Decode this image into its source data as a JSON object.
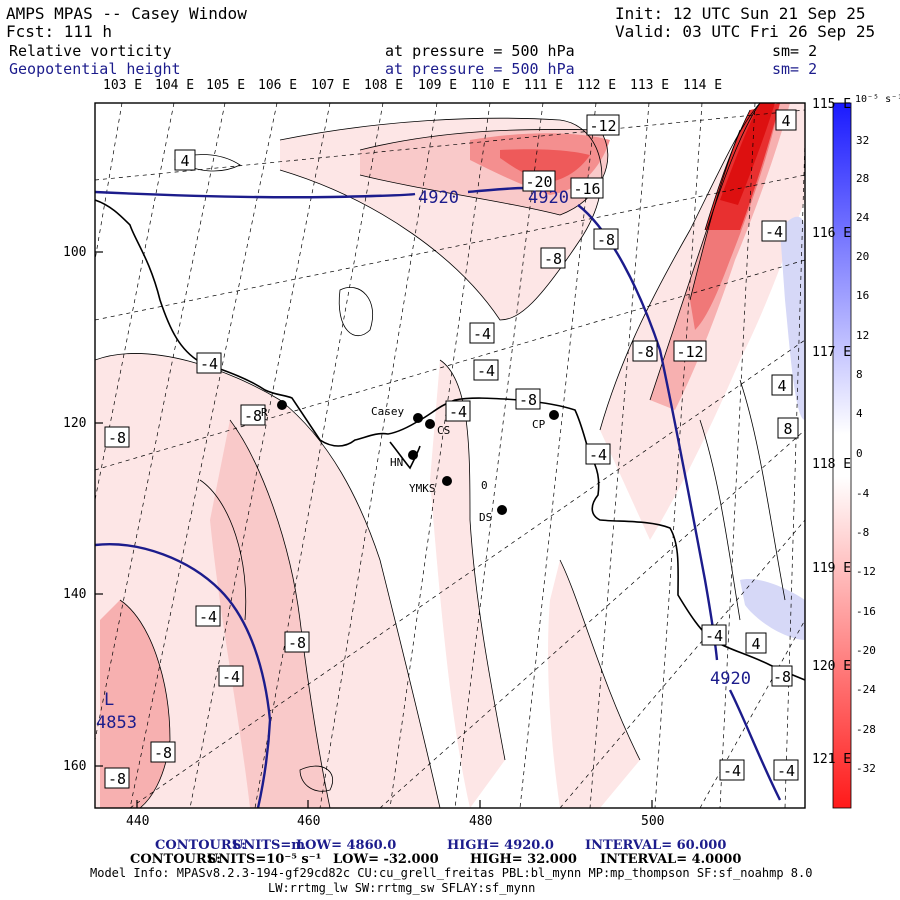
{
  "header": {
    "model": "AMPS MPAS -- Casey Window",
    "forecast": "Fcst: 111 h",
    "init": "Init: 12 UTC Sun 21 Sep 25",
    "valid": "Valid: 03 UTC Fri 26 Sep 25",
    "field1": "Relative vorticity",
    "field2": "Geopotential height",
    "pressure1": "at pressure =  500 hPa",
    "pressure2": "at pressure =  500 hPa",
    "sm1": "sm= 2",
    "sm2": "sm= 2"
  },
  "top_lon_labels": [
    "103 E",
    "104 E",
    "105 E",
    "106 E",
    "107 E",
    "108 E",
    "109 E",
    "110 E",
    "111 E",
    "112 E",
    "113 E",
    "114 E"
  ],
  "right_lon_labels": [
    "115 E",
    "116 E",
    "117 E",
    "118 E",
    "119 E",
    "120 E",
    "121 E"
  ],
  "x_axis_ticks": [
    "440",
    "460",
    "480",
    "500"
  ],
  "y_axis_ticks": [
    "100",
    "120",
    "140",
    "160"
  ],
  "colorbar": {
    "unit": "10⁻⁵ s⁻¹",
    "labels": [
      "32",
      "28",
      "24",
      "20",
      "16",
      "12",
      "8",
      "4",
      "0",
      "-4",
      "-8",
      "-12",
      "-16",
      "-20",
      "-24",
      "-28",
      "-32"
    ],
    "neg_color": "#ff1a1a",
    "pos_color": "#1a1aff"
  },
  "contour_labels": [
    {
      "id": "a",
      "text": "4"
    },
    {
      "id": "b",
      "text": "-12"
    },
    {
      "id": "c",
      "text": "-20"
    },
    {
      "id": "d",
      "text": "-16"
    },
    {
      "id": "e",
      "text": "4"
    },
    {
      "id": "f",
      "text": "-8"
    },
    {
      "id": "g",
      "text": "-4"
    },
    {
      "id": "h",
      "text": "-8"
    },
    {
      "id": "i",
      "text": "-4"
    },
    {
      "id": "j",
      "text": "-4"
    },
    {
      "id": "k",
      "text": "-8"
    },
    {
      "id": "l",
      "text": "-12"
    },
    {
      "id": "m",
      "text": "-4"
    },
    {
      "id": "n",
      "text": "-8"
    },
    {
      "id": "o",
      "text": "-4"
    },
    {
      "id": "p",
      "text": "-8"
    },
    {
      "id": "q",
      "text": "4"
    },
    {
      "id": "r",
      "text": "8"
    },
    {
      "id": "s",
      "text": "-4"
    },
    {
      "id": "t",
      "text": "-4"
    },
    {
      "id": "u",
      "text": "-8"
    },
    {
      "id": "v",
      "text": "-4"
    },
    {
      "id": "w",
      "text": "-4"
    },
    {
      "id": "x",
      "text": "4"
    },
    {
      "id": "y",
      "text": "-8"
    },
    {
      "id": "z",
      "text": "-8"
    },
    {
      "id": "aa",
      "text": "-8"
    },
    {
      "id": "ab",
      "text": "-4"
    },
    {
      "id": "ac",
      "text": "-8"
    },
    {
      "id": "ad",
      "text": "-4"
    }
  ],
  "height_labels": {
    "h1": "4920",
    "h2": "4920",
    "h3": "4920",
    "low_letter": "L",
    "low_value": "4853"
  },
  "stations": {
    "r": "R",
    "casey": "Casey",
    "cs": "CS",
    "hn": "HN",
    "ymks": "YMKS",
    "cp": "CP",
    "ds": "DS",
    "zero": "0"
  },
  "footer": {
    "contours1_label": "CONTOURS:",
    "contours1_units": "UNITS=m",
    "contours1_low": "LOW=  4860.0",
    "contours1_high": "HIGH=  4920.0",
    "contours1_interval": "INTERVAL=  60.000",
    "contours2_label": "CONTOURS:",
    "contours2_units": "UNITS=10⁻⁵ s⁻¹",
    "contours2_low": "LOW= -32.000",
    "contours2_high": "HIGH=  32.000",
    "contours2_interval": "INTERVAL=  4.0000",
    "model_info": "Model Info: MPASv8.2.3-194-gf29cd82c CU:cu_grell_freitas PBL:bl_mynn MP:mp_thompson SF:sf_noahmp 8.0",
    "physics": "LW:rrtmg_lw SW:rrtmg_sw SFLAY:sf_mynn"
  }
}
